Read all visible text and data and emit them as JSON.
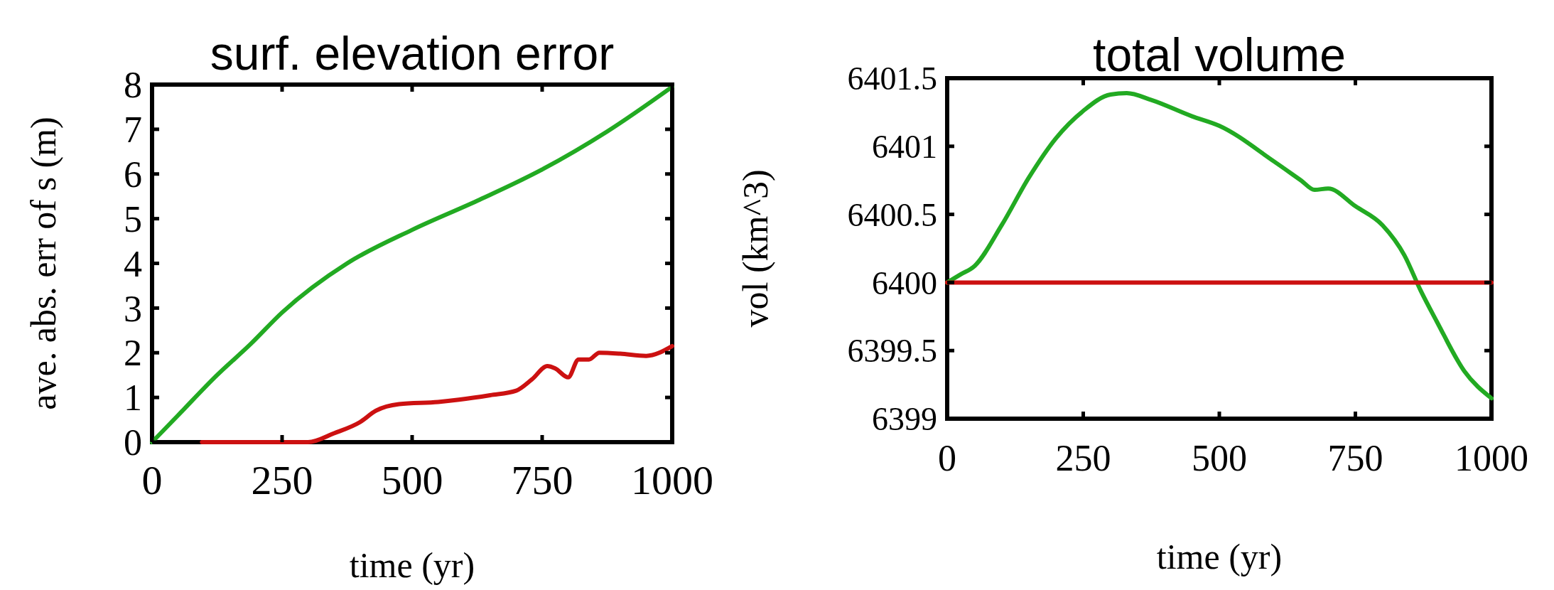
{
  "chart_data": [
    {
      "type": "line",
      "title": "surf. elevation error",
      "xlabel": "time (yr)",
      "ylabel": "ave. abs. err of s (m)",
      "xlim": [
        0,
        1000
      ],
      "xticks": [
        0,
        250,
        500,
        750,
        1000
      ],
      "ylim": [
        0,
        8
      ],
      "yticks": [
        0,
        1,
        2,
        3,
        4,
        5,
        6,
        7,
        8
      ],
      "series": [
        {
          "color": "#22aa22",
          "x": [
            0,
            50,
            125,
            190,
            250,
            375,
            500,
            625,
            750,
            875,
            1000
          ],
          "values": [
            0,
            0.6,
            1.5,
            2.2,
            2.9,
            4.0,
            4.75,
            5.4,
            6.1,
            6.95,
            7.95
          ]
        },
        {
          "color": "#cc1111",
          "x": [
            96,
            200,
            300,
            350,
            400,
            430,
            475,
            550,
            590,
            650,
            700,
            730,
            760,
            775,
            800,
            820,
            840,
            860,
            900,
            950,
            1000
          ],
          "values": [
            0,
            0,
            0,
            0.2,
            0.45,
            0.7,
            0.85,
            0.9,
            0.95,
            1.05,
            1.15,
            1.4,
            1.7,
            1.65,
            1.45,
            1.85,
            1.85,
            2.0,
            1.98,
            1.93,
            2.15
          ]
        }
      ]
    },
    {
      "type": "line",
      "title": "total volume",
      "xlabel": "time (yr)",
      "ylabel": "vol (km^3)",
      "xlim": [
        0,
        1000
      ],
      "xticks": [
        0,
        250,
        500,
        750,
        1000
      ],
      "ylim": [
        6399,
        6401.5
      ],
      "yticks": [
        6399,
        6399.5,
        6400,
        6400.5,
        6401,
        6401.5
      ],
      "series": [
        {
          "color": "#22aa22",
          "x": [
            0,
            25,
            50,
            100,
            150,
            200,
            250,
            300,
            330,
            375,
            450,
            500,
            600,
            650,
            675,
            700,
            750,
            800,
            840,
            870,
            900,
            950,
            1000
          ],
          "values": [
            6400,
            6400.06,
            6400.12,
            6400.42,
            6400.77,
            6401.06,
            6401.26,
            6401.38,
            6401.39,
            6401.34,
            6401.22,
            6401.15,
            6400.89,
            6400.75,
            6400.68,
            6400.69,
            6400.56,
            6400.42,
            6400.2,
            6399.94,
            6399.71,
            6399.35,
            6399.15
          ]
        },
        {
          "color": "#cc1111",
          "x": [
            0,
            1000
          ],
          "values": [
            6400,
            6400
          ]
        }
      ]
    }
  ]
}
